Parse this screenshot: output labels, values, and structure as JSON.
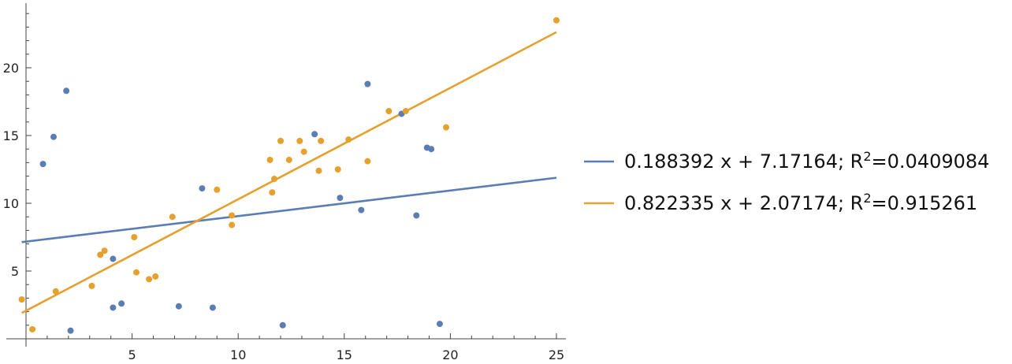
{
  "chart_data": {
    "type": "scatter",
    "xlim": [
      -0.2,
      25.4
    ],
    "ylim": [
      0,
      24.5
    ],
    "x_ticks": [
      5,
      10,
      15,
      20,
      25
    ],
    "y_ticks": [
      5,
      10,
      15,
      20
    ],
    "grid": false,
    "legend_position": "right",
    "colors": {
      "blue": "#5b7db4",
      "orange": "#e5a02d",
      "axis": "#444444"
    },
    "series": [
      {
        "color_key": "blue",
        "points": [
          [
            0.8,
            12.9
          ],
          [
            1.3,
            14.9
          ],
          [
            1.9,
            18.3
          ],
          [
            2.1,
            0.6
          ],
          [
            4.1,
            5.9
          ],
          [
            4.1,
            2.3
          ],
          [
            4.5,
            2.6
          ],
          [
            7.2,
            2.4
          ],
          [
            8.3,
            11.1
          ],
          [
            8.8,
            2.3
          ],
          [
            12.1,
            1.0
          ],
          [
            13.6,
            15.1
          ],
          [
            14.8,
            10.4
          ],
          [
            15.8,
            9.5
          ],
          [
            16.1,
            18.8
          ],
          [
            17.7,
            16.6
          ],
          [
            18.4,
            9.1
          ],
          [
            18.9,
            14.1
          ],
          [
            19.1,
            14.0
          ],
          [
            19.5,
            1.1
          ]
        ],
        "fit": {
          "slope": 0.188392,
          "intercept": 7.17164
        },
        "legend_label": "0.188392 x + 7.17164; R",
        "legend_r2": "=0.0409084"
      },
      {
        "color_key": "orange",
        "points": [
          [
            -0.2,
            2.9
          ],
          [
            0.3,
            0.7
          ],
          [
            1.4,
            3.5
          ],
          [
            3.1,
            3.9
          ],
          [
            3.5,
            6.2
          ],
          [
            3.7,
            6.5
          ],
          [
            5.1,
            7.5
          ],
          [
            5.2,
            4.9
          ],
          [
            5.8,
            4.4
          ],
          [
            6.1,
            4.6
          ],
          [
            6.9,
            9.0
          ],
          [
            9.0,
            11.0
          ],
          [
            9.7,
            9.1
          ],
          [
            9.7,
            8.4
          ],
          [
            11.5,
            13.2
          ],
          [
            11.6,
            10.8
          ],
          [
            11.7,
            11.8
          ],
          [
            12.0,
            14.6
          ],
          [
            12.4,
            13.2
          ],
          [
            12.9,
            14.6
          ],
          [
            13.1,
            13.8
          ],
          [
            13.8,
            12.4
          ],
          [
            13.9,
            14.6
          ],
          [
            14.7,
            12.5
          ],
          [
            15.2,
            14.7
          ],
          [
            16.1,
            13.1
          ],
          [
            17.1,
            16.8
          ],
          [
            17.9,
            16.8
          ],
          [
            19.8,
            15.6
          ],
          [
            25.0,
            23.5
          ]
        ],
        "fit": {
          "slope": 0.822335,
          "intercept": 2.07174
        },
        "legend_label": "0.822335 x + 2.07174; R",
        "legend_r2": "=0.915261"
      }
    ]
  }
}
